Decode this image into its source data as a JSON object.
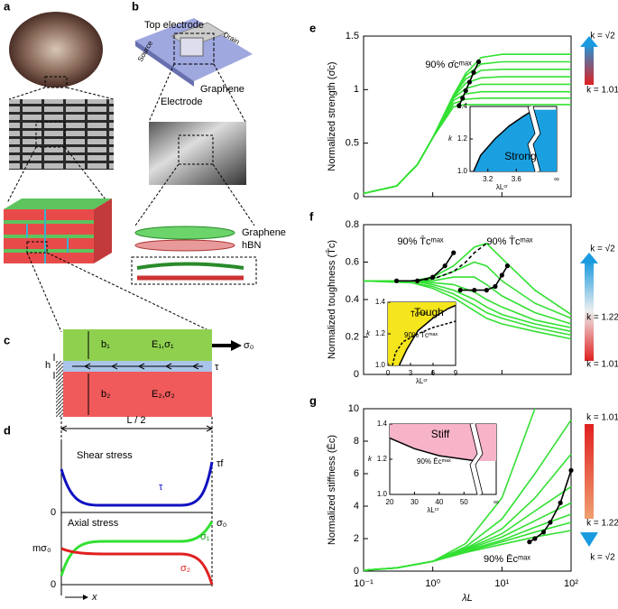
{
  "panels": {
    "a": {
      "label": "a"
    },
    "b": {
      "label": "b",
      "top_electrode": "Top electrode",
      "drain": "Drain",
      "source": "Source",
      "graphene_device": "Graphene",
      "electrode": "Electrode",
      "graphene_layer": "Graphene",
      "hbn": "hBN"
    },
    "c": {
      "label": "c",
      "b1": "b₁",
      "e1": "E₁,σ₁",
      "sigma0": "σ₀",
      "h": "h",
      "tau": "τ",
      "b2": "b₂",
      "e2": "E₂,σ₂"
    },
    "d": {
      "label": "d",
      "half_length": "L / 2",
      "shear_title": "Shear stress",
      "tau": "τ",
      "tau_f": "τf",
      "shear_zero": "0",
      "axial_title": "Axial stress",
      "sigma1": "σ₁",
      "sigma0": "σ₀",
      "m_sigma0": "mσ₀",
      "sigma2": "σ₂",
      "axial_zero": "0",
      "x": "x"
    }
  },
  "chart_data": [
    {
      "type": "line",
      "panel": "e",
      "ylabel": "Normalized strength (σ̄c)",
      "log_x": true,
      "grid": false,
      "xtick_labels": false,
      "xlim": [
        0.1,
        100
      ],
      "xticks": [
        0.1,
        1,
        10,
        100
      ],
      "ylim": [
        0,
        1.5
      ],
      "yticks": [
        0,
        0.5,
        1,
        1.5
      ],
      "series": [
        {
          "color": "#33e033",
          "x": [
            0.1,
            0.3,
            0.6,
            1,
            2,
            3,
            5,
            10,
            100
          ],
          "values": [
            0.03,
            0.1,
            0.3,
            0.55,
            0.95,
            1.15,
            1.3,
            1.33,
            1.33
          ]
        },
        {
          "color": "#33e033",
          "x": [
            0.1,
            0.3,
            0.6,
            1,
            2,
            3,
            5,
            10,
            100
          ],
          "values": [
            0.03,
            0.1,
            0.3,
            0.55,
            0.95,
            1.13,
            1.24,
            1.26,
            1.26
          ]
        },
        {
          "color": "#33e033",
          "x": [
            0.1,
            0.3,
            0.6,
            1,
            2,
            3,
            5,
            10,
            100
          ],
          "values": [
            0.03,
            0.1,
            0.3,
            0.55,
            0.94,
            1.1,
            1.18,
            1.19,
            1.19
          ]
        },
        {
          "color": "#33e033",
          "x": [
            0.1,
            0.3,
            0.6,
            1,
            2,
            3,
            5,
            10,
            100
          ],
          "values": [
            0.03,
            0.1,
            0.3,
            0.55,
            0.93,
            1.06,
            1.11,
            1.12,
            1.12
          ]
        },
        {
          "color": "#33e033",
          "x": [
            0.1,
            0.3,
            0.6,
            1,
            2,
            3,
            5,
            10,
            100
          ],
          "values": [
            0.03,
            0.1,
            0.3,
            0.55,
            0.92,
            1.01,
            1.05,
            1.05,
            1.05
          ]
        },
        {
          "color": "#33e033",
          "x": [
            0.1,
            0.3,
            0.6,
            1,
            2,
            3,
            5,
            10,
            100
          ],
          "values": [
            0.03,
            0.1,
            0.3,
            0.55,
            0.9,
            0.96,
            0.98,
            0.98,
            0.98
          ]
        },
        {
          "color": "#33e033",
          "x": [
            0.1,
            0.3,
            0.6,
            1,
            2,
            3,
            5,
            10,
            100
          ],
          "values": [
            0.03,
            0.1,
            0.3,
            0.55,
            0.87,
            0.91,
            0.92,
            0.92,
            0.92
          ]
        },
        {
          "color": "#33e033",
          "x": [
            0.1,
            0.3,
            0.6,
            1,
            2,
            3,
            5,
            10,
            100
          ],
          "values": [
            0.03,
            0.1,
            0.3,
            0.55,
            0.84,
            0.86,
            0.86,
            0.86,
            0.86
          ]
        },
        {
          "color": "#000000",
          "markers": true,
          "x": [
            2.4,
            2.7,
            3.0,
            3.4,
            3.9,
            4.6
          ],
          "values": [
            0.85,
            0.92,
            0.99,
            1.07,
            1.16,
            1.26
          ]
        }
      ],
      "annotations": [
        "90% σ̄cᵐᵃˣ"
      ],
      "colorbar": [
        "k = √2",
        "k = 1.01"
      ],
      "inset": {
        "xlim": [
          2.95,
          3.85
        ],
        "xticks": [
          3.2,
          3.6
        ],
        "ylim": [
          1,
          1.4
        ],
        "yticks": [
          {
            "value": 1,
            "label": "1.0"
          },
          1.2,
          1.4
        ],
        "ylabel": "k",
        "xlabel": "λLᶜʳ",
        "break_label": "∞",
        "region_label": "Strong",
        "region_color": "#1aa0e0",
        "fill": "right",
        "boundaries": [
          {
            "x": [
              3.0,
              3.1,
              3.3,
              3.5,
              3.7,
              3.85
            ],
            "values": [
              1.0,
              1.1,
              1.2,
              1.28,
              1.34,
              1.38
            ]
          }
        ],
        "labels": []
      }
    },
    {
      "type": "line",
      "panel": "f",
      "ylabel": "Normalized toughness (T̄c)",
      "log_x": true,
      "grid": false,
      "xtick_labels": false,
      "xlim": [
        0.1,
        100
      ],
      "xticks": [
        0.1,
        1,
        10,
        100
      ],
      "ylim": [
        0,
        0.8
      ],
      "yticks": [
        0,
        0.2,
        0.4,
        0.6,
        0.8
      ],
      "series": [
        {
          "color": "#33e033",
          "x": [
            0.1,
            0.5,
            1,
            2,
            4,
            6,
            10,
            30,
            100
          ],
          "values": [
            0.5,
            0.5,
            0.52,
            0.58,
            0.68,
            0.7,
            0.62,
            0.45,
            0.32
          ]
        },
        {
          "color": "#33e033",
          "x": [
            0.1,
            0.5,
            1,
            2,
            4,
            6,
            10,
            30,
            100
          ],
          "values": [
            0.5,
            0.5,
            0.51,
            0.55,
            0.6,
            0.58,
            0.5,
            0.38,
            0.3
          ]
        },
        {
          "color": "#33e033",
          "x": [
            0.1,
            0.5,
            1,
            2,
            4,
            6,
            10,
            30,
            100
          ],
          "values": [
            0.5,
            0.5,
            0.5,
            0.52,
            0.52,
            0.48,
            0.42,
            0.33,
            0.27
          ]
        },
        {
          "color": "#33e033",
          "x": [
            0.1,
            0.5,
            1,
            2,
            4,
            6,
            10,
            30,
            100
          ],
          "values": [
            0.5,
            0.5,
            0.49,
            0.48,
            0.44,
            0.4,
            0.36,
            0.29,
            0.25
          ]
        },
        {
          "color": "#33e033",
          "x": [
            0.1,
            0.5,
            1,
            2,
            4,
            6,
            10,
            30,
            100
          ],
          "values": [
            0.5,
            0.5,
            0.48,
            0.45,
            0.4,
            0.36,
            0.32,
            0.27,
            0.23
          ]
        },
        {
          "color": "#33e033",
          "x": [
            0.1,
            0.5,
            1,
            2,
            4,
            6,
            10,
            30,
            100
          ],
          "values": [
            0.5,
            0.49,
            0.47,
            0.43,
            0.37,
            0.33,
            0.3,
            0.25,
            0.21
          ]
        },
        {
          "color": "#33e033",
          "x": [
            0.1,
            0.5,
            1,
            2,
            4,
            6,
            10,
            30,
            100
          ],
          "values": [
            0.5,
            0.49,
            0.46,
            0.41,
            0.34,
            0.3,
            0.27,
            0.23,
            0.19
          ]
        },
        {
          "color": "#000000",
          "markers": true,
          "x": [
            0.3,
            0.6,
            1,
            1.5,
            2
          ],
          "values": [
            0.5,
            0.5,
            0.52,
            0.58,
            0.65
          ]
        },
        {
          "color": "#000000",
          "markers": true,
          "x": [
            2.5,
            4,
            6,
            8,
            10,
            12
          ],
          "values": [
            0.45,
            0.45,
            0.45,
            0.47,
            0.53,
            0.58
          ]
        },
        {
          "color": "#000000",
          "dash": true,
          "x": [
            0.5,
            1,
            2,
            3,
            4,
            6
          ],
          "values": [
            0.5,
            0.51,
            0.55,
            0.6,
            0.65,
            0.7
          ]
        }
      ],
      "annotations": [
        "90% T̄cᵐᵃˣ",
        "90% T̄cᵐᵃˣ"
      ],
      "colorbar": [
        "k = √2",
        "k = 1.22",
        "k = 1.01"
      ],
      "inset": {
        "xlim": [
          0,
          9
        ],
        "xticks": [
          0,
          3,
          6,
          9
        ],
        "ylim": [
          1,
          1.4
        ],
        "yticks": [
          {
            "value": 1,
            "label": "1.0"
          },
          1.2,
          1.4
        ],
        "ylabel": "k",
        "xlabel": "λLᶜʳ",
        "region_label": "Tough",
        "region_color": "#f5e51c",
        "fill": "left",
        "boundaries": [
          {
            "x": [
              1.5,
              2.5,
              4,
              6,
              8,
              9
            ],
            "values": [
              1.0,
              1.1,
              1.22,
              1.3,
              1.36,
              1.38
            ]
          },
          {
            "dash": true,
            "x": [
              0.6,
              1,
              2,
              4,
              6,
              9
            ],
            "values": [
              1.0,
              1.08,
              1.15,
              1.2,
              1.24,
              1.28
            ]
          }
        ],
        "labels": [
          "T̄cᵐᵃˣ",
          "90% T̄cᵐᵃˣ"
        ]
      }
    },
    {
      "type": "line",
      "panel": "g",
      "ylabel": "Normalized stiffness (Ēc)",
      "xlabel": "λL",
      "log_x": true,
      "grid": false,
      "xtick_labels": true,
      "xlim": [
        0.1,
        100
      ],
      "xticks": [
        {
          "value": 0.1,
          "label": "10⁻¹"
        },
        {
          "value": 1,
          "label": "10⁰"
        },
        {
          "value": 10,
          "label": "10¹"
        },
        {
          "value": 100,
          "label": "10²"
        }
      ],
      "ylim": [
        0,
        10
      ],
      "yticks": [
        0,
        2,
        4,
        6,
        8,
        10
      ],
      "series": [
        {
          "color": "#33e033",
          "x": [
            0.1,
            0.3,
            1,
            3,
            10,
            30
          ],
          "values": [
            0.05,
            0.2,
            0.6,
            1.7,
            4.5,
            10
          ]
        },
        {
          "color": "#33e033",
          "x": [
            0.1,
            0.3,
            1,
            3,
            10,
            30,
            100
          ],
          "values": [
            0.05,
            0.2,
            0.6,
            1.5,
            3.2,
            6.0,
            9.3
          ]
        },
        {
          "color": "#33e033",
          "x": [
            0.1,
            0.3,
            1,
            3,
            10,
            30,
            100
          ],
          "values": [
            0.05,
            0.2,
            0.6,
            1.4,
            2.6,
            4.5,
            7.2
          ]
        },
        {
          "color": "#33e033",
          "x": [
            0.1,
            0.3,
            1,
            3,
            10,
            30,
            100
          ],
          "values": [
            0.05,
            0.2,
            0.6,
            1.35,
            2.3,
            3.7,
            5.2
          ]
        },
        {
          "color": "#33e033",
          "x": [
            0.1,
            0.3,
            1,
            3,
            10,
            30,
            100
          ],
          "values": [
            0.05,
            0.2,
            0.6,
            1.3,
            2.1,
            3.1,
            4.2
          ]
        },
        {
          "color": "#33e033",
          "x": [
            0.1,
            0.3,
            1,
            3,
            10,
            30,
            100
          ],
          "values": [
            0.05,
            0.2,
            0.6,
            1.25,
            1.9,
            2.7,
            3.5
          ]
        },
        {
          "color": "#33e033",
          "x": [
            0.1,
            0.3,
            1,
            3,
            10,
            30,
            100
          ],
          "values": [
            0.05,
            0.2,
            0.6,
            1.2,
            1.8,
            2.4,
            3.0
          ]
        },
        {
          "color": "#33e033",
          "x": [
            0.1,
            0.3,
            1,
            3,
            10,
            30,
            100
          ],
          "values": [
            0.05,
            0.2,
            0.6,
            1.15,
            1.65,
            2.1,
            2.5
          ]
        },
        {
          "color": "#000000",
          "markers": true,
          "x": [
            25,
            30,
            40,
            50,
            70,
            100
          ],
          "values": [
            1.8,
            2.0,
            2.4,
            3.0,
            4.2,
            6.2
          ]
        }
      ],
      "annotations": [
        "90% Ēcᵐᵃˣ"
      ],
      "colorbar": [
        "k = 1.01",
        "k = 1.22",
        "k = √2"
      ],
      "inset": {
        "xlim": [
          20,
          55
        ],
        "xticks": [
          20,
          30,
          40,
          50
        ],
        "ylim": [
          1,
          1.4
        ],
        "yticks": [
          {
            "value": 1,
            "label": "1.0"
          },
          1.2,
          1.4
        ],
        "ylabel": "k",
        "xlabel": "λLᶜʳ",
        "break_label": "∞",
        "region_label": "Stiff",
        "region_color": "#f7b3c8",
        "fill": "above",
        "boundaries": [
          {
            "x": [
              20,
              25,
              30,
              40,
              50,
              55
            ],
            "values": [
              1.32,
              1.29,
              1.26,
              1.22,
              1.2,
              1.19
            ]
          }
        ],
        "labels": [
          "90% Ēcᵐᵃˣ"
        ]
      }
    }
  ]
}
